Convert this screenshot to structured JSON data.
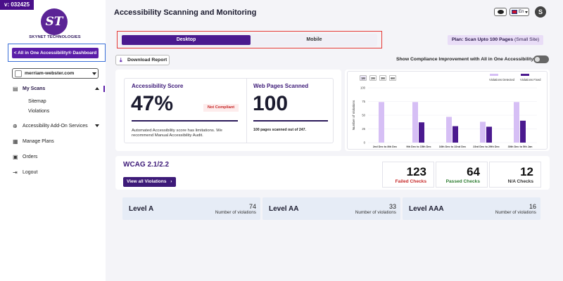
{
  "version": "v: 032425",
  "logo": {
    "monogram": "ST",
    "text": "SKYNET TECHNOLOGIES"
  },
  "sidebar": {
    "dashboard_button": "< All in One Accessibility® Dashboard",
    "site_select": "merriam-webster.com",
    "items": [
      {
        "label": "My Scans",
        "icon": "scan-icon"
      },
      {
        "label": "Accessibility Add-On Services",
        "icon": "plus-circle-icon"
      },
      {
        "label": "Manage Plans",
        "icon": "document-icon"
      },
      {
        "label": "Orders",
        "icon": "orders-icon"
      },
      {
        "label": "Logout",
        "icon": "logout-icon"
      }
    ],
    "subitems": [
      {
        "label": "Sitemap"
      },
      {
        "label": "Violations"
      }
    ]
  },
  "header": {
    "title": "Accessibility Scanning and Monitoring",
    "language": "En",
    "avatar_initial": "S"
  },
  "tabs": [
    {
      "label": "Desktop",
      "active": true
    },
    {
      "label": "Mobile",
      "active": false
    }
  ],
  "plan": {
    "prefix": "Plan:",
    "name": "Scan Upto 100 Pages",
    "size": "(Small Site)"
  },
  "download_button": "Download Report",
  "compliance_toggle": {
    "label": "Show Compliance Improvement with All in One Accessibility",
    "on": false
  },
  "score": {
    "title": "Accessibility Score",
    "value": "47%",
    "status": "Not Compliant",
    "note": "Automated Accessibility score has limitations. We recommend Manual Accessibility Audit."
  },
  "pages": {
    "title": "Web Pages Scanned",
    "value": "100",
    "note": "100 pages scanned out of 247."
  },
  "chart_data": {
    "type": "bar",
    "ranges": [
      "1M",
      "2M",
      "3M",
      "6M"
    ],
    "active_range": "1M",
    "ylabel": "Number of Violations",
    "ylim": [
      0,
      100
    ],
    "yticks": [
      "100",
      "75",
      "50",
      "25",
      "0"
    ],
    "categories": [
      "2nd Dec to 8th Dec",
      "9th Dec to 15th Dec",
      "16th Dec to 22nd Dec",
      "23rd Dec to 29th Dec",
      "30th Dec to 5th Jan"
    ],
    "series": [
      {
        "name": "Violations Detected",
        "color": "#d6bff5",
        "values": [
          74,
          74,
          47,
          38,
          74
        ]
      },
      {
        "name": "Violations Fixed",
        "color": "#4b1a8f",
        "values": [
          0,
          37,
          30,
          29,
          40
        ]
      }
    ]
  },
  "wcag": {
    "title": "WCAG 2.1/2.2",
    "button": "View all Violations",
    "stats": [
      {
        "value": "123",
        "label": "Failed Checks",
        "color": "#c62828"
      },
      {
        "value": "64",
        "label": "Passed Checks",
        "color": "#2e7d32"
      },
      {
        "value": "12",
        "label": "N/A Checks",
        "color": "#333333"
      }
    ],
    "levels": [
      {
        "name": "Level A",
        "count": "74",
        "sub": "Number of violations"
      },
      {
        "name": "Level AA",
        "count": "33",
        "sub": "Number of violations"
      },
      {
        "name": "Level AAA",
        "count": "16",
        "sub": "Number of violations"
      }
    ]
  }
}
